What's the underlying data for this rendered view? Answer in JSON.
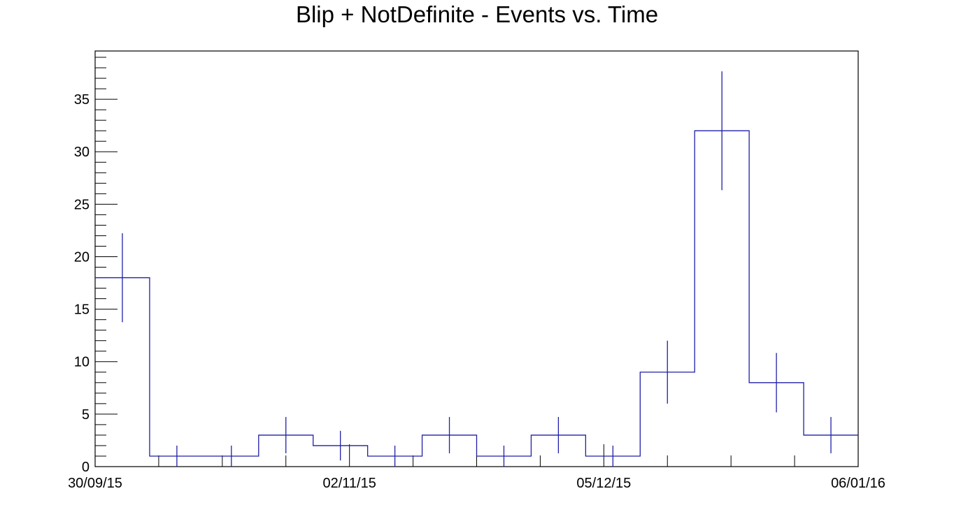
{
  "chart_data": {
    "type": "histogram",
    "title": "Blip + NotDefinite - Events vs. Time",
    "xlabel": "",
    "ylabel": "",
    "x_tick_labels": [
      "30/09/15",
      "02/11/15",
      "05/12/15",
      "06/01/16"
    ],
    "y_tick_labels": [
      "0",
      "5",
      "10",
      "15",
      "20",
      "25",
      "30",
      "35"
    ],
    "ylim": [
      0,
      39.6
    ],
    "bins": 14,
    "values": [
      18,
      1,
      1,
      3,
      2,
      1,
      3,
      1,
      3,
      1,
      9,
      32,
      8,
      3
    ],
    "errors": [
      4.24,
      1,
      1,
      1.73,
      1.41,
      1,
      1.73,
      1,
      1.73,
      1,
      3,
      5.66,
      2.83,
      1.73
    ],
    "line_color": "#1f1fa8",
    "axis_color": "#000000",
    "grid": false,
    "legend": false
  }
}
